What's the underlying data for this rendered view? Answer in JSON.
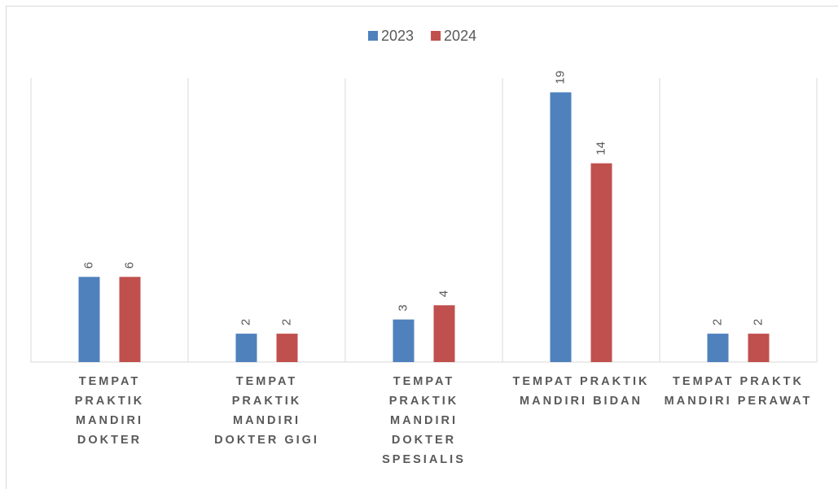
{
  "chart_data": {
    "type": "bar",
    "categories": [
      "TEMPAT PRAKTIK MANDIRI DOKTER",
      "TEMPAT PRAKTIK MANDIRI DOKTER GIGI",
      "TEMPAT PRAKTIK MANDIRI DOKTER SPESIALIS",
      "TEMPAT PRAKTIK MANDIRI BIDAN",
      "TEMPAT PRAKTK MANDIRI PERAWAT"
    ],
    "series": [
      {
        "name": "2023",
        "color": "#4f81bd",
        "values": [
          6,
          2,
          3,
          19,
          2
        ]
      },
      {
        "name": "2024",
        "color": "#c0504d",
        "values": [
          6,
          2,
          4,
          14,
          2
        ]
      }
    ],
    "ylim": [
      0,
      20
    ],
    "legend": "top"
  }
}
